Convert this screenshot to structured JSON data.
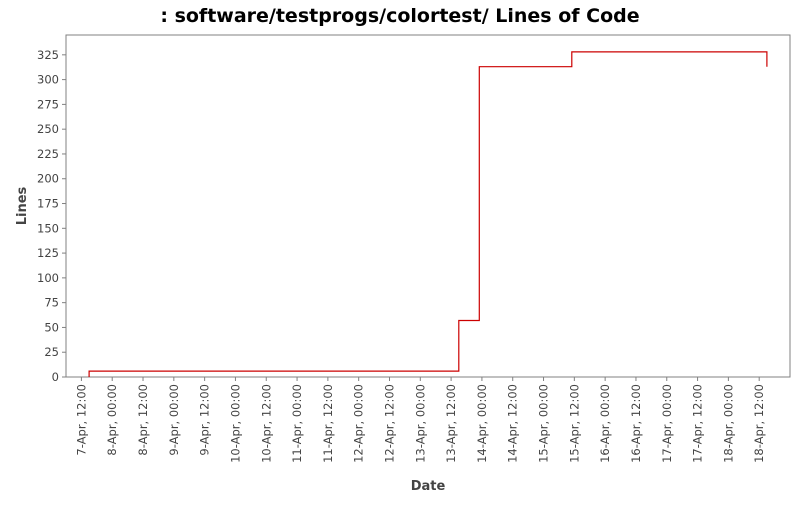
{
  "chart_data": {
    "type": "line",
    "style": "step",
    "title": ": software/testprogs/colortest/ Lines of Code",
    "xlabel": "Date",
    "ylabel": "Lines",
    "ylim": [
      0,
      345
    ],
    "xlim": [
      "7-Apr 06:00",
      "19-Apr 00:00"
    ],
    "y_ticks": [
      0,
      25,
      50,
      75,
      100,
      125,
      150,
      175,
      200,
      225,
      250,
      275,
      300,
      325
    ],
    "x_ticks": [
      {
        "t": "7-Apr 12:00",
        "label": "7-Apr, 12:00"
      },
      {
        "t": "8-Apr 00:00",
        "label": "8-Apr, 00:00"
      },
      {
        "t": "8-Apr 12:00",
        "label": "8-Apr, 12:00"
      },
      {
        "t": "9-Apr 00:00",
        "label": "9-Apr, 00:00"
      },
      {
        "t": "9-Apr 12:00",
        "label": "9-Apr, 12:00"
      },
      {
        "t": "10-Apr 00:00",
        "label": "10-Apr, 00:00"
      },
      {
        "t": "10-Apr 12:00",
        "label": "10-Apr, 12:00"
      },
      {
        "t": "11-Apr 00:00",
        "label": "11-Apr, 00:00"
      },
      {
        "t": "11-Apr 12:00",
        "label": "11-Apr, 12:00"
      },
      {
        "t": "12-Apr 00:00",
        "label": "12-Apr, 00:00"
      },
      {
        "t": "12-Apr 12:00",
        "label": "12-Apr, 12:00"
      },
      {
        "t": "13-Apr 00:00",
        "label": "13-Apr, 00:00"
      },
      {
        "t": "13-Apr 12:00",
        "label": "13-Apr, 12:00"
      },
      {
        "t": "14-Apr 00:00",
        "label": "14-Apr, 00:00"
      },
      {
        "t": "14-Apr 12:00",
        "label": "14-Apr, 12:00"
      },
      {
        "t": "15-Apr 00:00",
        "label": "15-Apr, 00:00"
      },
      {
        "t": "15-Apr 12:00",
        "label": "15-Apr, 12:00"
      },
      {
        "t": "16-Apr 00:00",
        "label": "16-Apr, 00:00"
      },
      {
        "t": "16-Apr 12:00",
        "label": "16-Apr, 12:00"
      },
      {
        "t": "17-Apr 00:00",
        "label": "17-Apr, 00:00"
      },
      {
        "t": "17-Apr 12:00",
        "label": "17-Apr, 12:00"
      },
      {
        "t": "18-Apr 00:00",
        "label": "18-Apr, 00:00"
      },
      {
        "t": "18-Apr 12:00",
        "label": "18-Apr, 12:00"
      }
    ],
    "series": [
      {
        "color": "#cc0000",
        "points": [
          {
            "x": "7-Apr 15:00",
            "y": 0
          },
          {
            "x": "7-Apr 15:00",
            "y": 6
          },
          {
            "x": "13-Apr 15:00",
            "y": 6
          },
          {
            "x": "13-Apr 15:00",
            "y": 57
          },
          {
            "x": "13-Apr 23:00",
            "y": 57
          },
          {
            "x": "13-Apr 23:00",
            "y": 313
          },
          {
            "x": "15-Apr 11:00",
            "y": 313
          },
          {
            "x": "15-Apr 11:00",
            "y": 328
          },
          {
            "x": "18-Apr 15:00",
            "y": 328
          },
          {
            "x": "18-Apr 15:00",
            "y": 313
          }
        ]
      }
    ],
    "grid": false,
    "background": "#ffffff",
    "axis_color": "#808080"
  }
}
